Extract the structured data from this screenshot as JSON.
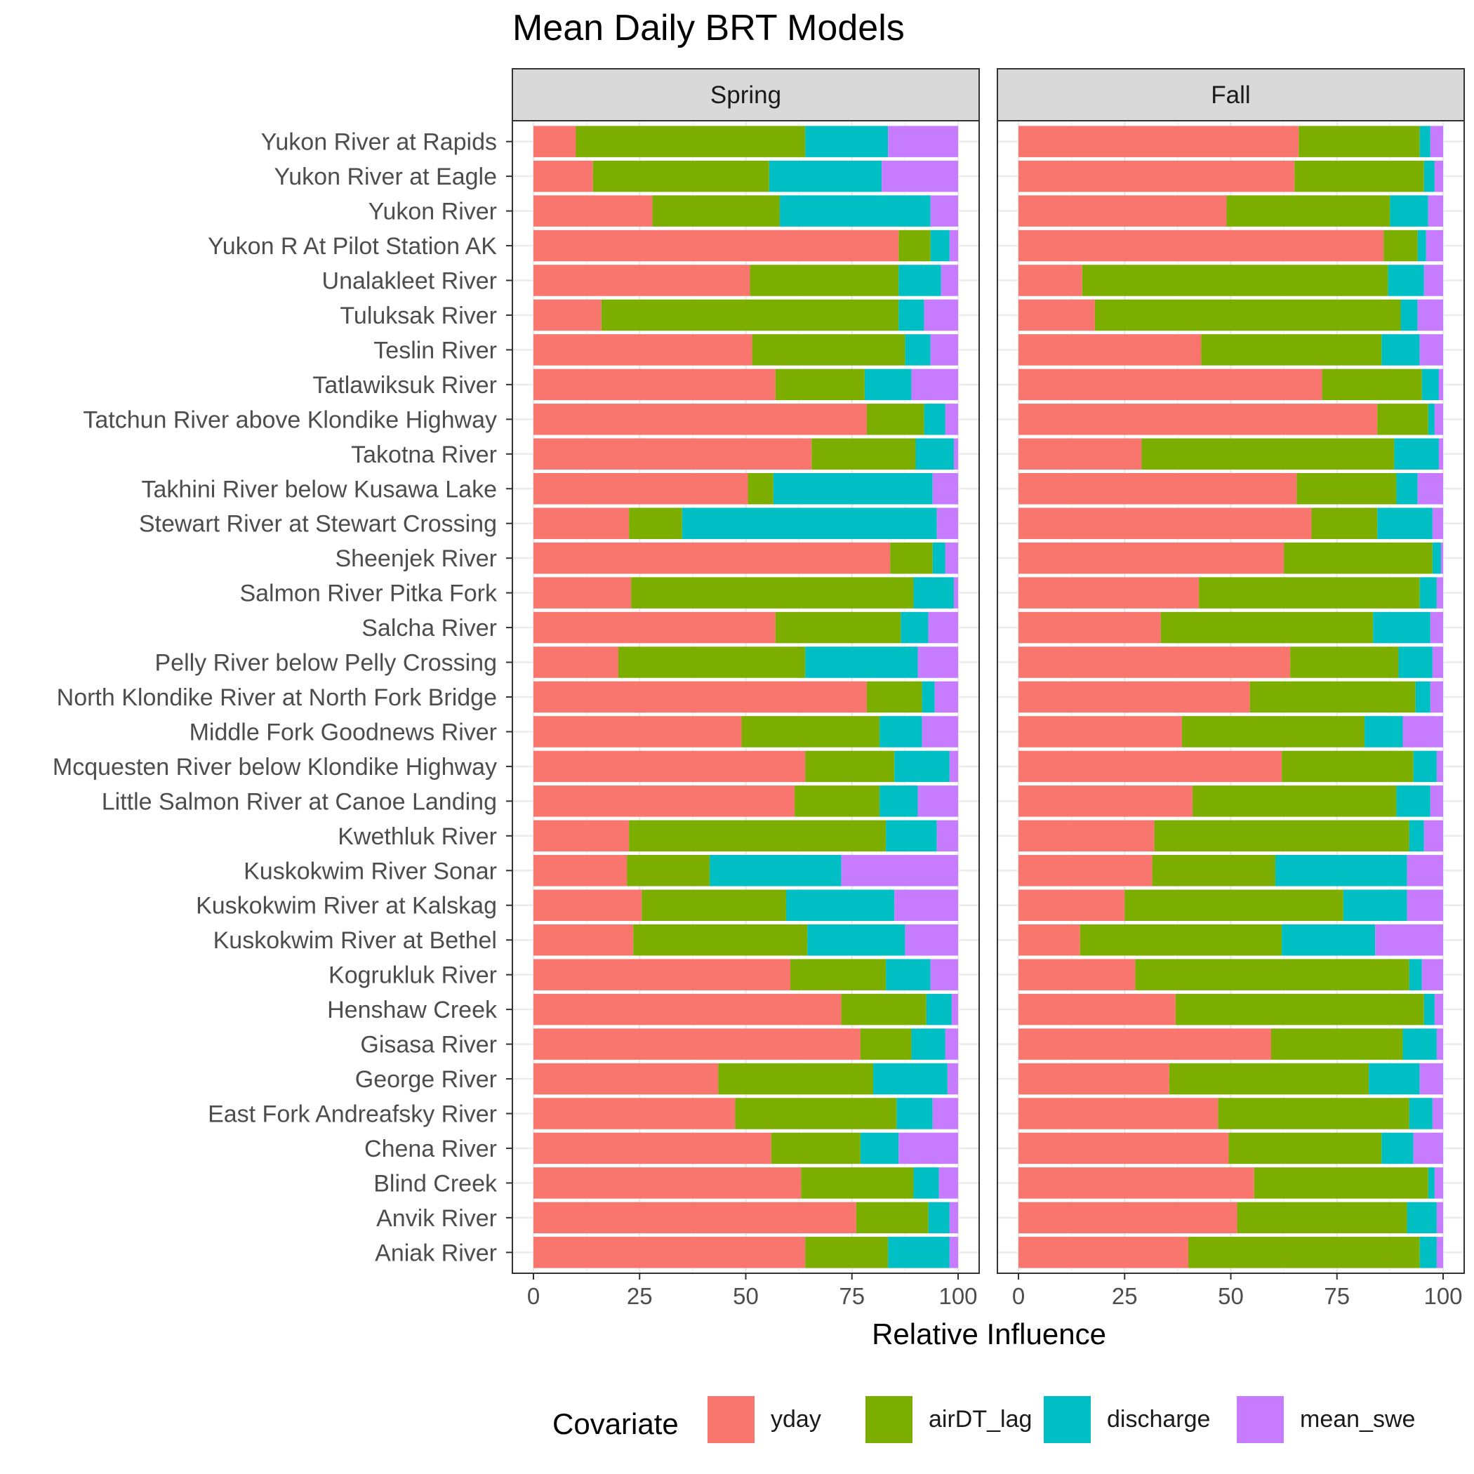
{
  "chart_data": {
    "type": "bar",
    "orientation": "horizontal",
    "stacked": true,
    "title": "Mean Daily BRT Models",
    "xlabel": "Relative Influence",
    "ylabel": "",
    "xlim": [
      0,
      100
    ],
    "xticks": [
      0,
      25,
      50,
      75,
      100
    ],
    "grid": true,
    "legend_position": "bottom",
    "legend": {
      "title": "Covariate",
      "items": [
        {
          "name": "yday",
          "color": "#F8766D"
        },
        {
          "name": "airDT_lag",
          "color": "#7CAE00"
        },
        {
          "name": "discharge",
          "color": "#00BFC4"
        },
        {
          "name": "mean_swe",
          "color": "#C77CFF"
        }
      ]
    },
    "categories": [
      "Yukon River at Rapids",
      "Yukon River at Eagle",
      "Yukon River",
      "Yukon R At Pilot Station AK",
      "Unalakleet River",
      "Tuluksak River",
      "Teslin River",
      "Tatlawiksuk River",
      "Tatchun River above Klondike Highway",
      "Takotna River",
      "Takhini River below Kusawa Lake",
      "Stewart River at Stewart Crossing",
      "Sheenjek River",
      "Salmon River Pitka Fork",
      "Salcha River",
      "Pelly River below Pelly Crossing",
      "North Klondike River at North Fork Bridge",
      "Middle Fork Goodnews River",
      "Mcquesten River below Klondike Highway",
      "Little Salmon River at Canoe Landing",
      "Kwethluk River",
      "Kuskokwim River Sonar",
      "Kuskokwim River at Kalskag",
      "Kuskokwim River at Bethel",
      "Kogrukluk River",
      "Henshaw Creek",
      "Gisasa River",
      "George River",
      "East Fork Andreafsky River",
      "Chena River",
      "Blind Creek",
      "Anvik River",
      "Aniak River"
    ],
    "panels": [
      {
        "name": "Spring",
        "series": [
          {
            "name": "yday",
            "values": [
              10,
              14,
              28,
              86,
              51,
              16,
              51.5,
              57,
              78.5,
              65.5,
              50.5,
              22.5,
              84,
              23,
              57,
              20,
              78.5,
              49,
              64,
              61.5,
              22.5,
              22,
              25.5,
              23.5,
              60.5,
              72.5,
              77,
              43.5,
              47.5,
              56,
              63,
              76,
              64
            ]
          },
          {
            "name": "airDT_lag",
            "values": [
              54,
              41.5,
              30,
              7.5,
              35,
              70,
              36,
              21,
              13.5,
              24.5,
              6,
              12.5,
              10,
              66.5,
              29.5,
              44,
              13,
              32.5,
              21,
              20,
              60.5,
              19.5,
              34,
              41,
              22.5,
              20,
              12,
              36.5,
              38,
              21,
              26.5,
              17,
              19.5
            ]
          },
          {
            "name": "discharge",
            "values": [
              19.5,
              26.5,
              35.5,
              4.5,
              10,
              6,
              6,
              11,
              5,
              9,
              37.5,
              60,
              3,
              9.5,
              6.5,
              26.5,
              3,
              10,
              13,
              9,
              12,
              31,
              25.5,
              23,
              10.5,
              6,
              8,
              17.5,
              8.5,
              9,
              6,
              5,
              14.5
            ]
          },
          {
            "name": "mean_swe",
            "values": [
              16.5,
              18,
              6.5,
              2,
              4,
              8,
              6.5,
              11,
              3,
              1,
              6,
              5,
              3,
              1,
              7,
              9.5,
              5.5,
              8.5,
              2,
              9.5,
              5,
              27.5,
              15,
              12.5,
              6.5,
              1.5,
              3,
              2.5,
              6,
              14,
              4.5,
              2,
              2
            ]
          }
        ]
      },
      {
        "name": "Fall",
        "series": [
          {
            "name": "yday",
            "values": [
              66,
              65,
              49,
              86,
              15,
              18,
              43,
              71.5,
              84.5,
              29,
              65.5,
              69,
              62.5,
              42.5,
              33.5,
              64,
              54.5,
              38.5,
              62,
              41,
              32,
              31.5,
              25,
              14.5,
              27.5,
              37,
              59.5,
              35.5,
              47,
              49.5,
              55.5,
              51.5,
              40
            ]
          },
          {
            "name": "airDT_lag",
            "values": [
              28.5,
              30.5,
              38.5,
              8,
              72,
              72,
              42.5,
              23.5,
              12,
              59.5,
              23.5,
              15.5,
              35,
              52,
              50,
              25.5,
              39,
              43,
              31,
              48,
              60,
              29,
              51.5,
              47.5,
              64.5,
              58.5,
              31,
              47,
              45,
              36,
              41,
              40,
              54.5
            ]
          },
          {
            "name": "discharge",
            "values": [
              2.5,
              2.5,
              9,
              2,
              8.5,
              4,
              9,
              4,
              1.5,
              10.5,
              5,
              13,
              2,
              4,
              13.5,
              8,
              3.5,
              9,
              5.5,
              8,
              3.5,
              31,
              15,
              22,
              3,
              2.5,
              8,
              12,
              5.5,
              7.5,
              1.5,
              7,
              4
            ]
          },
          {
            "name": "mean_swe",
            "values": [
              3,
              2,
              3.5,
              4,
              4.5,
              6,
              5.5,
              1,
              2,
              1,
              6,
              2.5,
              0.5,
              1.5,
              3,
              2.5,
              3,
              9.5,
              1.5,
              3,
              4.5,
              8.5,
              8.5,
              16,
              5,
              2,
              1.5,
              5.5,
              2.5,
              7,
              2,
              1.5,
              1.5
            ]
          }
        ]
      }
    ]
  }
}
